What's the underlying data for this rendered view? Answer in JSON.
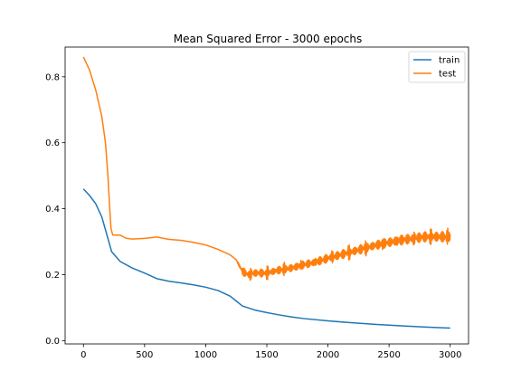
{
  "chart_data": {
    "type": "line",
    "title": "Mean Squared Error - 3000 epochs",
    "xlabel": "",
    "ylabel": "",
    "xlim": [
      -150,
      3150
    ],
    "ylim": [
      -0.01,
      0.89
    ],
    "x_ticks": [
      0,
      500,
      1000,
      1500,
      2000,
      2500,
      3000
    ],
    "y_ticks": [
      0.0,
      0.2,
      0.4,
      0.6,
      0.8
    ],
    "x_tick_labels": [
      "0",
      "500",
      "1000",
      "1500",
      "2000",
      "2500",
      "3000"
    ],
    "y_tick_labels": [
      "0.0",
      "0.2",
      "0.4",
      "0.6",
      "0.8"
    ],
    "grid": false,
    "legend_position": "top-right",
    "series": [
      {
        "name": "train",
        "color": "#1f77b4",
        "points": [
          [
            0,
            0.46
          ],
          [
            50,
            0.44
          ],
          [
            100,
            0.415
          ],
          [
            150,
            0.375
          ],
          [
            200,
            0.31
          ],
          [
            230,
            0.27
          ],
          [
            300,
            0.24
          ],
          [
            400,
            0.22
          ],
          [
            500,
            0.205
          ],
          [
            600,
            0.188
          ],
          [
            700,
            0.18
          ],
          [
            800,
            0.175
          ],
          [
            900,
            0.169
          ],
          [
            1000,
            0.162
          ],
          [
            1100,
            0.152
          ],
          [
            1200,
            0.135
          ],
          [
            1250,
            0.12
          ],
          [
            1300,
            0.105
          ],
          [
            1400,
            0.093
          ],
          [
            1500,
            0.085
          ],
          [
            1600,
            0.078
          ],
          [
            1700,
            0.072
          ],
          [
            1800,
            0.067
          ],
          [
            2000,
            0.06
          ],
          [
            2200,
            0.054
          ],
          [
            2400,
            0.049
          ],
          [
            2600,
            0.045
          ],
          [
            2800,
            0.041
          ],
          [
            3000,
            0.038
          ]
        ]
      },
      {
        "name": "test",
        "color": "#ff7f0e",
        "points": [
          [
            0,
            0.86
          ],
          [
            50,
            0.82
          ],
          [
            100,
            0.76
          ],
          [
            150,
            0.68
          ],
          [
            180,
            0.6
          ],
          [
            200,
            0.5
          ],
          [
            215,
            0.4
          ],
          [
            225,
            0.34
          ],
          [
            240,
            0.32
          ],
          [
            300,
            0.32
          ],
          [
            350,
            0.31
          ],
          [
            400,
            0.308
          ],
          [
            500,
            0.31
          ],
          [
            600,
            0.314
          ],
          [
            700,
            0.307
          ],
          [
            800,
            0.304
          ],
          [
            900,
            0.298
          ],
          [
            1000,
            0.29
          ],
          [
            1100,
            0.277
          ],
          [
            1200,
            0.26
          ],
          [
            1250,
            0.245
          ],
          [
            1300,
            0.21
          ],
          [
            1350,
            0.2
          ],
          [
            1400,
            0.205
          ],
          [
            1500,
            0.205
          ],
          [
            1600,
            0.214
          ],
          [
            1700,
            0.22
          ],
          [
            1800,
            0.23
          ],
          [
            1900,
            0.238
          ],
          [
            2000,
            0.25
          ],
          [
            2100,
            0.26
          ],
          [
            2200,
            0.27
          ],
          [
            2300,
            0.28
          ],
          [
            2400,
            0.29
          ],
          [
            2500,
            0.298
          ],
          [
            2600,
            0.305
          ],
          [
            2700,
            0.31
          ],
          [
            2800,
            0.315
          ],
          [
            2900,
            0.315
          ],
          [
            3000,
            0.315
          ]
        ],
        "noise_amplitude": [
          [
            0,
            0.0
          ],
          [
            1250,
            0.0
          ],
          [
            1300,
            0.012
          ],
          [
            1400,
            0.012
          ],
          [
            1800,
            0.012
          ],
          [
            2200,
            0.014
          ],
          [
            2600,
            0.015
          ],
          [
            3000,
            0.016
          ]
        ]
      }
    ]
  }
}
